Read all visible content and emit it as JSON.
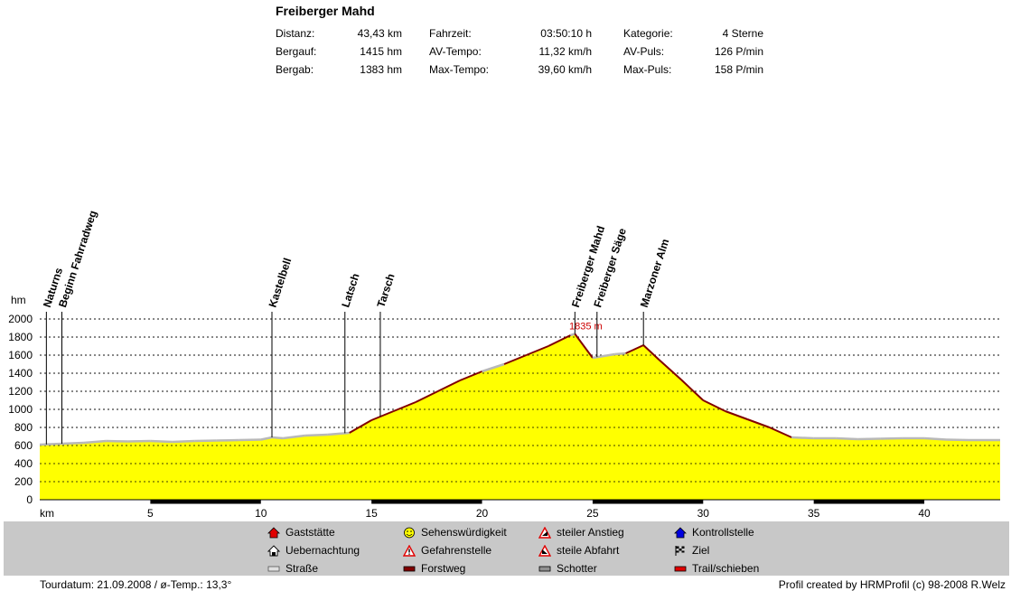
{
  "title": "Freiberger Mahd",
  "stats": [
    {
      "label": "Distanz:",
      "value": "43,43 km"
    },
    {
      "label": "Bergauf:",
      "value": "1415 hm"
    },
    {
      "label": "Bergab:",
      "value": "1383 hm"
    },
    {
      "label": "Fahrzeit:",
      "value": "03:50:10 h"
    },
    {
      "label": "AV-Tempo:",
      "value": "11,32 km/h"
    },
    {
      "label": "Max-Tempo:",
      "value": "39,60 km/h"
    },
    {
      "label": "Kategorie:",
      "value": "4 Sterne"
    },
    {
      "label": "AV-Puls:",
      "value": "126 P/min"
    },
    {
      "label": "Max-Puls:",
      "value": "158 P/min"
    }
  ],
  "chart_data": {
    "type": "area",
    "xlabel": "km",
    "ylabel": "hm",
    "xlim": [
      0,
      43.43
    ],
    "ylim": [
      0,
      2000
    ],
    "xticks": [
      5,
      10,
      15,
      20,
      25,
      30,
      35,
      40
    ],
    "yticks": [
      0,
      200,
      400,
      600,
      800,
      1000,
      1200,
      1400,
      1600,
      1800,
      2000
    ],
    "grid": true,
    "fill_color": "#ffff00",
    "line_color": "#800000",
    "series": [
      {
        "x": [
          0,
          1,
          2,
          3,
          4,
          5,
          6,
          7,
          8,
          9,
          10,
          10.5,
          11,
          12,
          13,
          14,
          15,
          16,
          17,
          18,
          19,
          20,
          21,
          22,
          23,
          24,
          24.2,
          25,
          26,
          26.5,
          27.3,
          28,
          29,
          30,
          31,
          32,
          33,
          34,
          35,
          36,
          37,
          38,
          39,
          40,
          41,
          42,
          43.43
        ],
        "y": [
          610,
          620,
          630,
          650,
          645,
          650,
          640,
          650,
          655,
          660,
          665,
          690,
          680,
          710,
          720,
          740,
          880,
          980,
          1080,
          1200,
          1320,
          1420,
          1500,
          1600,
          1700,
          1820,
          1835,
          1570,
          1610,
          1620,
          1710,
          1550,
          1330,
          1100,
          980,
          890,
          800,
          690,
          680,
          680,
          670,
          675,
          680,
          680,
          665,
          660,
          660
        ]
      }
    ],
    "max_label": "1835 m",
    "max_point": {
      "x": 24.2,
      "y": 1835
    },
    "waypoints": [
      {
        "name": "Naturns",
        "x": 0.3
      },
      {
        "name": "Beginn Fahrradweg",
        "x": 1.0
      },
      {
        "name": "Kastelbell",
        "x": 10.5
      },
      {
        "name": "Latsch",
        "x": 13.8
      },
      {
        "name": "Tarsch",
        "x": 15.4
      },
      {
        "name": "Freiberger Mahd",
        "x": 24.2
      },
      {
        "name": "Freiberger Säge",
        "x": 25.2
      },
      {
        "name": "Marzoner Alm",
        "x": 27.3
      }
    ],
    "surface_segments": [
      {
        "type": "Forstweg",
        "from": 5,
        "to": 10
      },
      {
        "type": "Forstweg",
        "from": 15,
        "to": 20
      },
      {
        "type": "Forstweg",
        "from": 25,
        "to": 30
      },
      {
        "type": "Forstweg",
        "from": 35,
        "to": 40
      }
    ]
  },
  "legend": [
    {
      "label": "Gaststätte",
      "icon": "house-red-icon"
    },
    {
      "label": "Uebernachtung",
      "icon": "house-bed-icon"
    },
    {
      "label": "Straße",
      "icon": "road-icon"
    },
    {
      "label": "Sehenswürdigkeit",
      "icon": "smiley-icon"
    },
    {
      "label": "Gefahrenstelle",
      "icon": "warning-icon"
    },
    {
      "label": "Forstweg",
      "icon": "forest-road-icon"
    },
    {
      "label": "steiler Anstieg",
      "icon": "steep-up-icon"
    },
    {
      "label": "steile Abfahrt",
      "icon": "steep-down-icon"
    },
    {
      "label": "Schotter",
      "icon": "gravel-icon"
    },
    {
      "label": "Kontrollstelle",
      "icon": "checkpoint-icon"
    },
    {
      "label": "Ziel",
      "icon": "finish-flag-icon"
    },
    {
      "label": "Trail/schieben",
      "icon": "trail-icon"
    }
  ],
  "footer": {
    "left": "Tourdatum: 21.09.2008  /  ø-Temp.: 13,3°",
    "right": "Profil created by HRMProfil (c) 98-2008 R.Welz"
  }
}
